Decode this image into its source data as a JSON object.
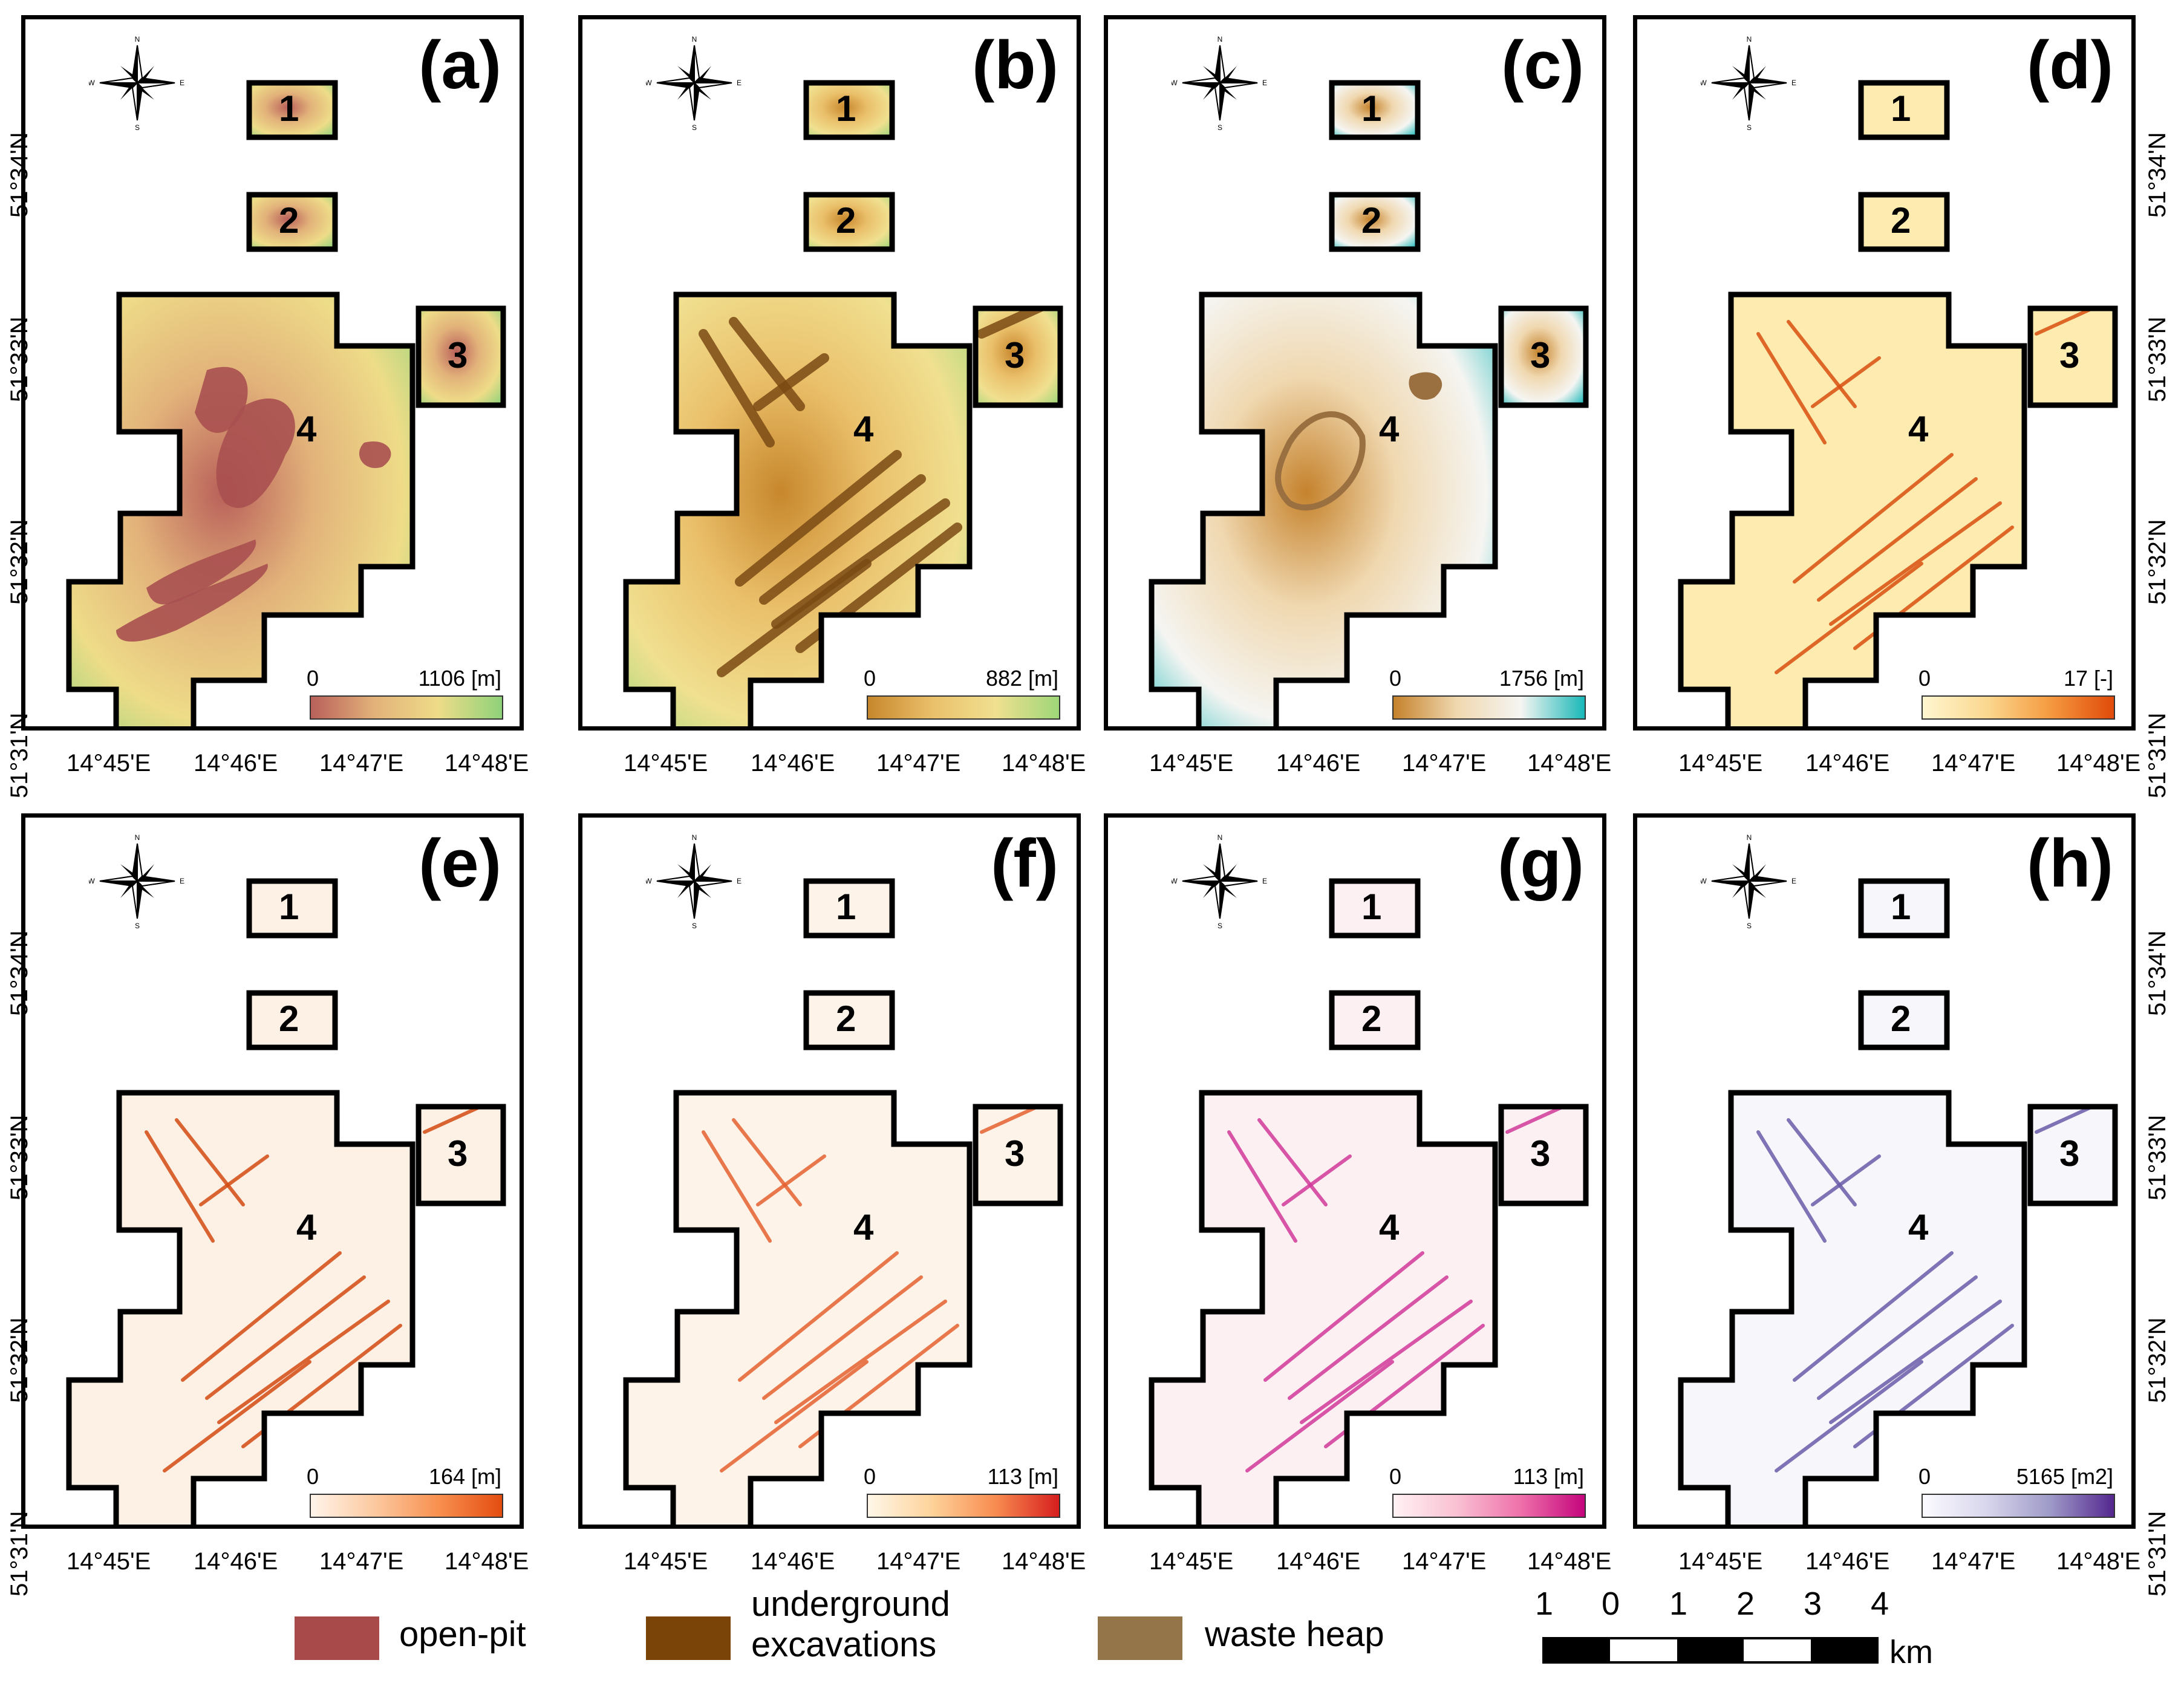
{
  "figure": {
    "lat_labels": [
      "51°34'N",
      "51°33'N",
      "51°32'N",
      "51°31'N"
    ],
    "lon_labels": [
      "14°45'E",
      "14°46'E",
      "14°47'E",
      "14°48'E"
    ],
    "region_labels": [
      "1",
      "2",
      "3",
      "4"
    ],
    "compass_letters": {
      "n": "N",
      "e": "E",
      "s": "S",
      "w": "W"
    }
  },
  "panels": [
    {
      "letter": "(a)",
      "min": "0",
      "max": "1106 [m]",
      "gradient": [
        "#b9605a",
        "#e2b27a",
        "#eedc88",
        "#8fd27a"
      ],
      "base": "#c7d99a",
      "overlay": "#a85050"
    },
    {
      "letter": "(b)",
      "min": "0",
      "max": "882 [m]",
      "gradient": [
        "#c7872c",
        "#eabf6a",
        "#f0e090",
        "#9ed678"
      ],
      "base": "#d8a863",
      "overlay": "#7a4a14"
    },
    {
      "letter": "(c)",
      "min": "0",
      "max": "1756 [m]",
      "gradient": [
        "#c5822c",
        "#f0d8b0",
        "#f5f5f2",
        "#19b8b8"
      ],
      "base": "#e3c08d",
      "overlay": "#9a7040"
    },
    {
      "letter": "(d)",
      "min": "0",
      "max": "17 [-]",
      "gradient": [
        "#fff6d0",
        "#fbd890",
        "#f59a40",
        "#e04a0a"
      ],
      "base": "#fdebb0",
      "overlay": "#d85010"
    },
    {
      "letter": "(e)",
      "min": "0",
      "max": "164 [m]",
      "gradient": [
        "#fff4ea",
        "#fcc9a0",
        "#f89050",
        "#e44d10"
      ],
      "base": "#fdf1e6",
      "overlay": "#d24a10"
    },
    {
      "letter": "(f)",
      "min": "0",
      "max": "113 [m]",
      "gradient": [
        "#fff7e8",
        "#fdd39a",
        "#f88c50",
        "#d61e1e"
      ],
      "base": "#fef3e8",
      "overlay": "#e46030"
    },
    {
      "letter": "(g)",
      "min": "0",
      "max": "113 [m]",
      "gradient": [
        "#fff2f4",
        "#f9c0d2",
        "#ee70aa",
        "#c4057c"
      ],
      "base": "#fdf0f2",
      "overlay": "#d0389a"
    },
    {
      "letter": "(h)",
      "min": "0",
      "max": "5165 [m2]",
      "gradient": [
        "#fbfbff",
        "#d8d6ec",
        "#9e9ac8",
        "#54278f"
      ],
      "base": "#f6f6fb",
      "overlay": "#6a5aa8"
    }
  ],
  "legend": {
    "items": [
      {
        "label": "open-pit",
        "color": "#a84a4a"
      },
      {
        "label": "underground excavations",
        "color": "#7a4408"
      },
      {
        "label": "waste heap",
        "color": "#937549"
      }
    ]
  },
  "scale_bar": {
    "numbers": [
      "1",
      "0",
      "1",
      "2",
      "3",
      "4"
    ],
    "unit": "km"
  }
}
